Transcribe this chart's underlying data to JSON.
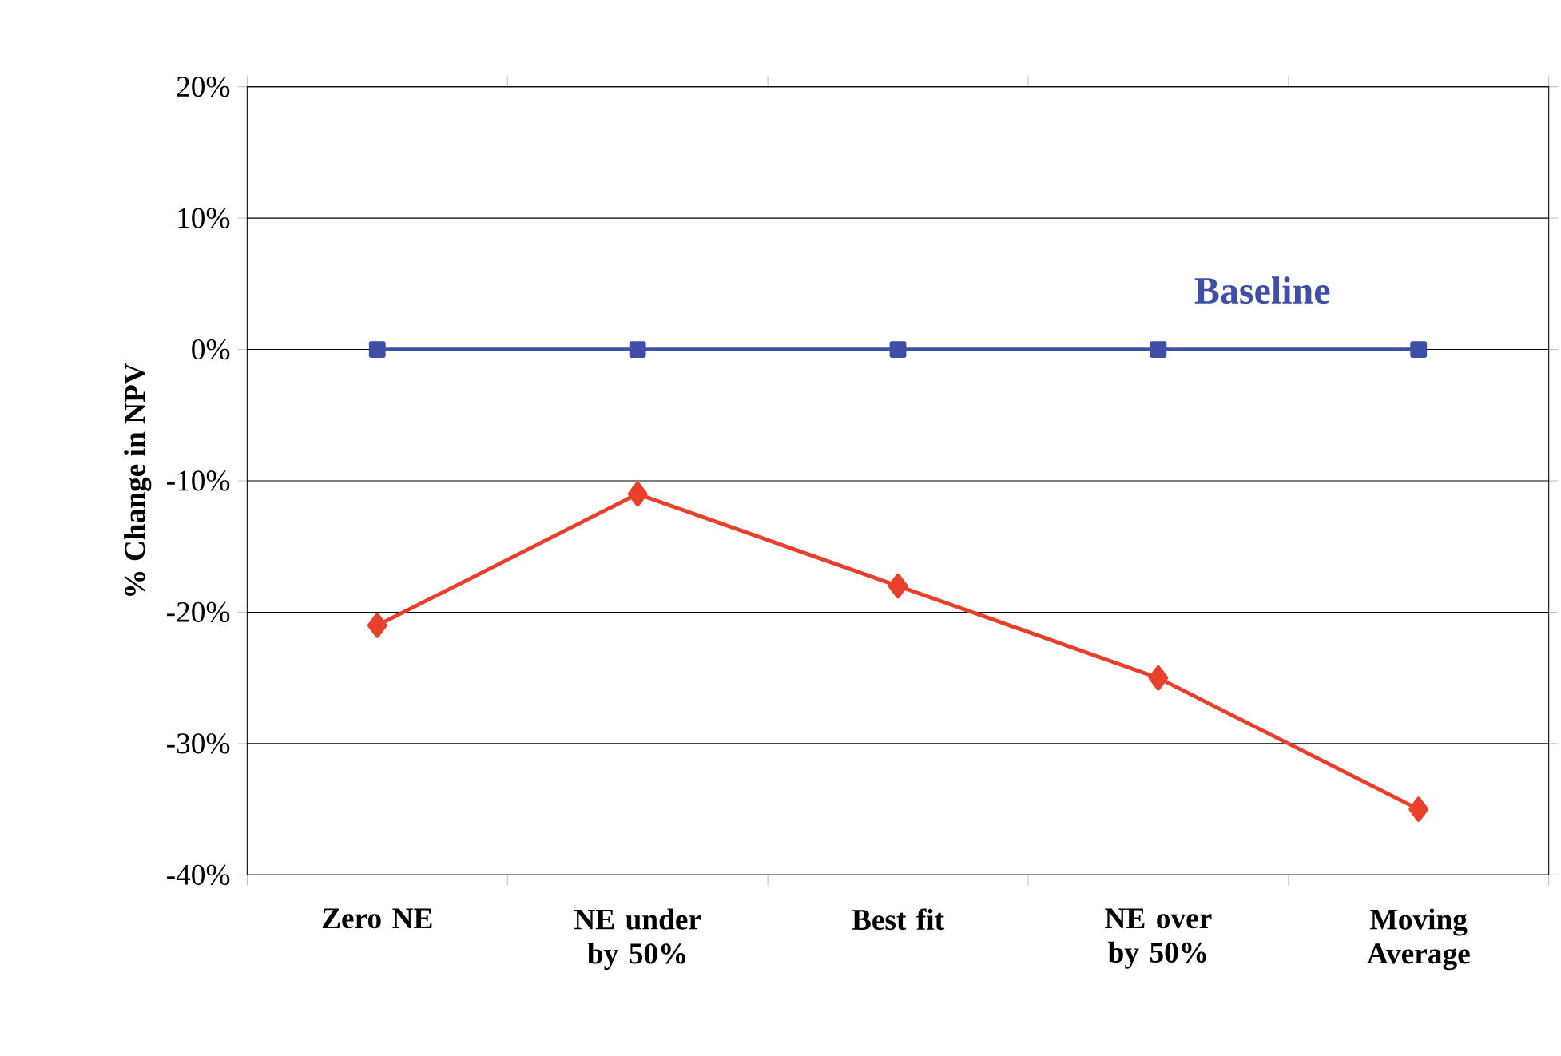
{
  "chart_data": {
    "type": "line",
    "ylabel": "% Change in NPV",
    "categories": [
      "Zero NE",
      "NE under by 50%",
      "Best fit",
      "NE over by 50%",
      "Moving Average"
    ],
    "series": [
      {
        "name": "Baseline",
        "color": "#3f4fa8",
        "marker": "square",
        "values": [
          0,
          0,
          0,
          0,
          0
        ]
      },
      {
        "color": "#e8402a",
        "marker": "diamond",
        "values": [
          -21,
          -11,
          -18,
          -25,
          -35
        ]
      }
    ],
    "ylim": [
      -40,
      20
    ],
    "yticks": [
      {
        "value": -40,
        "label": "-40%"
      },
      {
        "value": -30,
        "label": "-30%"
      },
      {
        "value": -20,
        "label": "-20%"
      },
      {
        "value": -10,
        "label": "-10%"
      },
      {
        "value": 0,
        "label": "0%"
      },
      {
        "value": 10,
        "label": "10%"
      },
      {
        "value": 20,
        "label": "20%"
      }
    ],
    "grid": "y"
  }
}
